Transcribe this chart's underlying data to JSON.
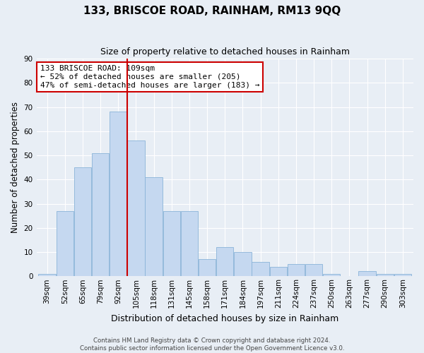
{
  "title": "133, BRISCOE ROAD, RAINHAM, RM13 9QQ",
  "subtitle": "Size of property relative to detached houses in Rainham",
  "xlabel": "Distribution of detached houses by size in Rainham",
  "ylabel": "Number of detached properties",
  "bar_color": "#c5d8f0",
  "bar_edge_color": "#8ab4d8",
  "background_color": "#e8eef5",
  "grid_color": "#ffffff",
  "vline_color": "#cc0000",
  "vline_bin_index": 5,
  "bin_labels": [
    "39sqm",
    "52sqm",
    "65sqm",
    "79sqm",
    "92sqm",
    "105sqm",
    "118sqm",
    "131sqm",
    "145sqm",
    "158sqm",
    "171sqm",
    "184sqm",
    "197sqm",
    "211sqm",
    "224sqm",
    "237sqm",
    "250sqm",
    "263sqm",
    "277sqm",
    "290sqm",
    "303sqm"
  ],
  "counts": [
    1,
    27,
    45,
    51,
    68,
    56,
    41,
    27,
    27,
    7,
    12,
    10,
    6,
    4,
    5,
    5,
    1,
    0,
    2,
    1,
    1
  ],
  "ylim": [
    0,
    90
  ],
  "yticks": [
    0,
    10,
    20,
    30,
    40,
    50,
    60,
    70,
    80,
    90
  ],
  "annotation_line1": "133 BRISCOE ROAD: 109sqm",
  "annotation_line2": "← 52% of detached houses are smaller (205)",
  "annotation_line3": "47% of semi-detached houses are larger (183) →",
  "annotation_box_color": "#ffffff",
  "annotation_box_edge_color": "#cc0000",
  "footer_line1": "Contains HM Land Registry data © Crown copyright and database right 2024.",
  "footer_line2": "Contains public sector information licensed under the Open Government Licence v3.0.",
  "title_fontsize": 11,
  "subtitle_fontsize": 9,
  "ylabel_fontsize": 8.5,
  "xlabel_fontsize": 9,
  "tick_fontsize": 7.5,
  "annotation_fontsize": 8,
  "footer_fontsize": 6.2
}
